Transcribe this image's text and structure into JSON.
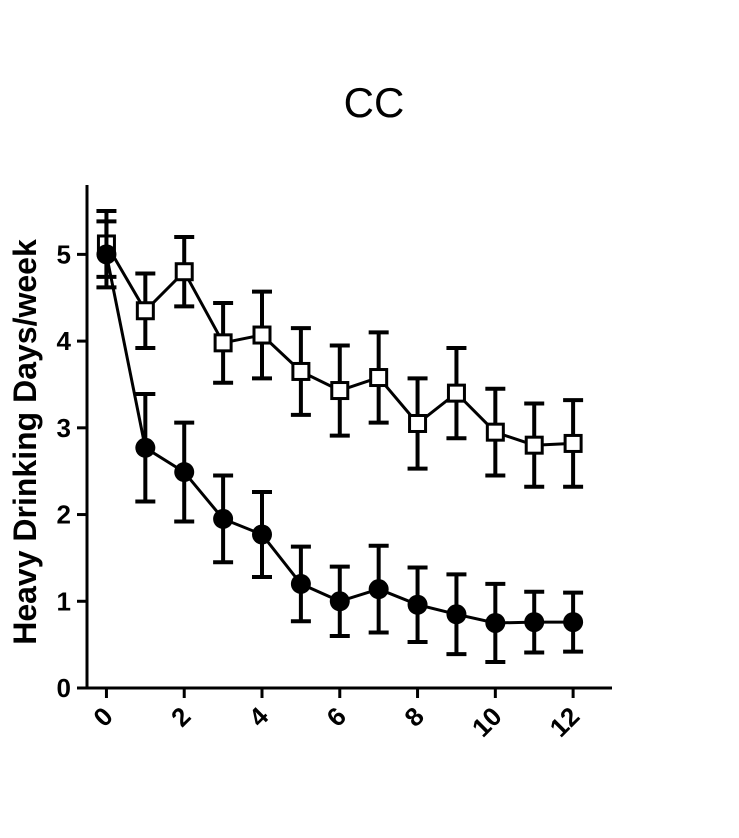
{
  "chart_data": {
    "type": "line",
    "title": "CC",
    "xlabel": "",
    "ylabel": "Heavy Drinking Days/week",
    "xlim": [
      -0.5,
      13
    ],
    "ylim": [
      0,
      5.8
    ],
    "x_ticks": [
      "0",
      "2",
      "4",
      "6",
      "8",
      "10",
      "12"
    ],
    "y_ticks": [
      "0",
      "1",
      "2",
      "3",
      "4",
      "5"
    ],
    "grid": false,
    "legend": "none",
    "series": [
      {
        "marker": "open-square",
        "x": [
          0,
          1,
          2,
          3,
          4,
          5,
          6,
          7,
          8,
          9,
          10,
          11,
          12
        ],
        "y": [
          5.12,
          4.35,
          4.8,
          3.98,
          4.07,
          3.65,
          3.43,
          3.58,
          3.05,
          3.4,
          2.95,
          2.8,
          2.82
        ],
        "err": [
          0.38,
          0.43,
          0.4,
          0.46,
          0.5,
          0.5,
          0.52,
          0.52,
          0.52,
          0.52,
          0.5,
          0.48,
          0.5
        ]
      },
      {
        "marker": "filled-circle",
        "x": [
          0,
          1,
          2,
          3,
          4,
          5,
          6,
          7,
          8,
          9,
          10,
          11,
          12
        ],
        "y": [
          5.0,
          2.77,
          2.49,
          1.95,
          1.77,
          1.2,
          1.0,
          1.14,
          0.96,
          0.85,
          0.75,
          0.76,
          0.76
        ],
        "err": [
          0.38,
          0.62,
          0.57,
          0.5,
          0.49,
          0.43,
          0.4,
          0.5,
          0.43,
          0.46,
          0.45,
          0.35,
          0.34
        ]
      }
    ]
  }
}
